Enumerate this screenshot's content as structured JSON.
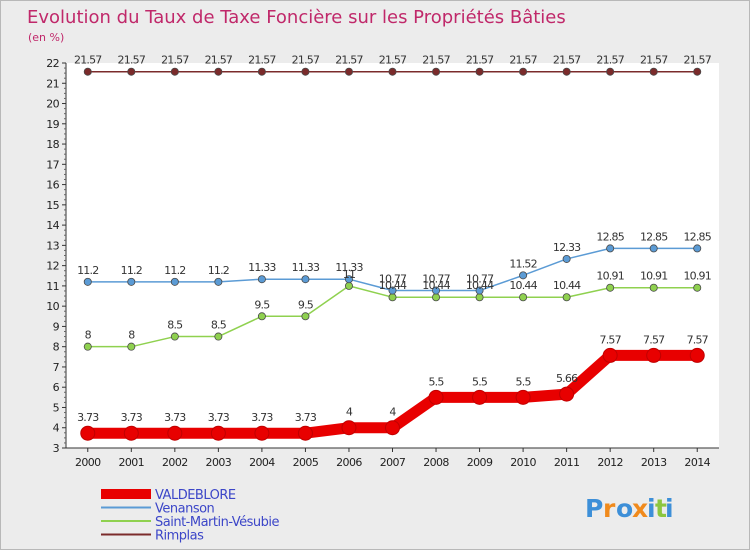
{
  "chart_data": {
    "type": "line",
    "title": "Evolution du Taux de Taxe Foncière sur les Propriétés Bâties",
    "unit_label": "(en %)",
    "xlabel": "",
    "ylabel": "",
    "ylim": [
      3,
      22
    ],
    "yticks": [
      "3",
      "4",
      "5",
      "6",
      "7",
      "8",
      "9",
      "10",
      "11",
      "12",
      "13",
      "14",
      "15",
      "16",
      "17",
      "18",
      "19",
      "20",
      "21",
      "22"
    ],
    "x": [
      "2000",
      "2001",
      "2002",
      "2003",
      "2004",
      "2005",
      "2006",
      "2007",
      "2008",
      "2009",
      "2010",
      "2011",
      "2012",
      "2013",
      "2014"
    ],
    "series": [
      {
        "name": "VALDEBLORE",
        "color": "#e80000",
        "values": [
          3.73,
          3.73,
          3.73,
          3.73,
          3.73,
          3.73,
          4,
          4,
          5.5,
          5.5,
          5.5,
          5.66,
          7.57,
          7.57,
          7.57
        ],
        "labels": [
          "3.73",
          "3.73",
          "3.73",
          "3.73",
          "3.73",
          "3.73",
          "4",
          "4",
          "5.5",
          "5.5",
          "5.5",
          "5.66",
          "7.57",
          "7.57",
          "7.57"
        ]
      },
      {
        "name": "Venanson",
        "color": "#5b9bd5",
        "values": [
          11.2,
          11.2,
          11.2,
          11.2,
          11.33,
          11.33,
          11.33,
          10.77,
          10.77,
          10.77,
          11.52,
          12.33,
          12.85,
          12.85,
          12.85
        ],
        "labels": [
          "11.2",
          "11.2",
          "11.2",
          "11.2",
          "11.33",
          "11.33",
          "11.33",
          "10.77",
          "10.77",
          "10.77",
          "11.52",
          "12.33",
          "12.85",
          "12.85",
          "12.85"
        ]
      },
      {
        "name": "Saint-Martin-Vésubie",
        "color": "#8fd14f",
        "values": [
          8,
          8,
          8.5,
          8.5,
          9.5,
          9.5,
          11,
          10.44,
          10.44,
          10.44,
          10.44,
          10.44,
          10.91,
          10.91,
          10.91
        ],
        "labels": [
          "8",
          "8",
          "8.5",
          "8.5",
          "9.5",
          "9.5",
          "11",
          "10.44",
          "10.44",
          "10.44",
          "10.44",
          "10.44",
          "10.91",
          "10.91",
          "10.91"
        ]
      },
      {
        "name": "Rimplas",
        "color": "#7b2b2b",
        "values": [
          21.57,
          21.57,
          21.57,
          21.57,
          21.57,
          21.57,
          21.57,
          21.57,
          21.57,
          21.57,
          21.57,
          21.57,
          21.57,
          21.57,
          21.57
        ],
        "labels": [
          "21.57",
          "21.57",
          "21.57",
          "21.57",
          "21.57",
          "21.57",
          "21.57",
          "21.57",
          "21.57",
          "21.57",
          "21.57",
          "21.57",
          "21.57",
          "21.57",
          "21.57"
        ]
      }
    ],
    "legend": [
      "VALDEBLORE",
      "Venanson",
      "Saint-Martin-Vésubie",
      "Rimplas"
    ],
    "grid": false
  },
  "logo": {
    "letters": [
      "P",
      "r",
      "o",
      "x",
      "i",
      "t",
      "i"
    ],
    "colors": [
      "#3d8fd8",
      "#f08a1c",
      "#3d8fd8",
      "#f08a1c",
      "#3d8fd8",
      "#8cc63f",
      "#3d8fd8"
    ]
  }
}
